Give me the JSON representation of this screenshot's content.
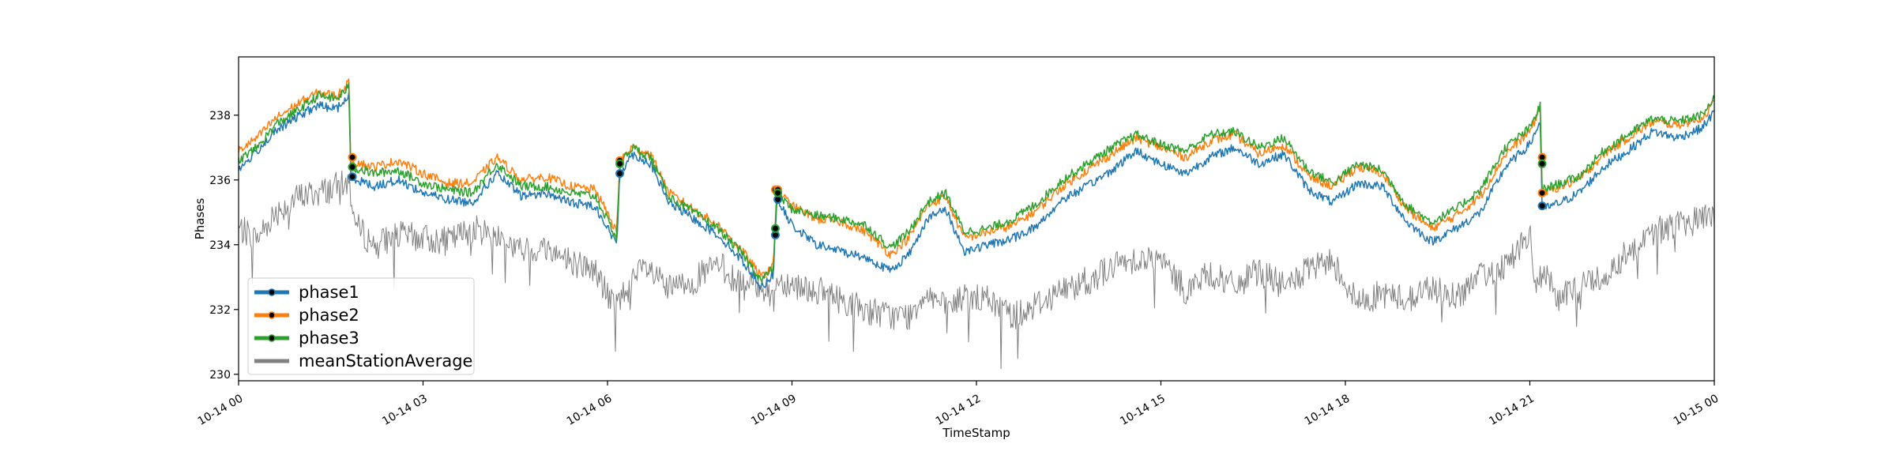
{
  "chart_data": {
    "type": "line",
    "title": "",
    "xlabel": "TimeStamp",
    "ylabel": "Phases",
    "x_range_hours": [
      0,
      24
    ],
    "ylim": [
      229.8,
      239.8
    ],
    "y_ticks": [
      230,
      232,
      234,
      236,
      238
    ],
    "x_ticks": [
      {
        "hour": 0,
        "label": "10-14 00"
      },
      {
        "hour": 3,
        "label": "10-14 03"
      },
      {
        "hour": 6,
        "label": "10-14 06"
      },
      {
        "hour": 9,
        "label": "10-14 09"
      },
      {
        "hour": 12,
        "label": "10-14 12"
      },
      {
        "hour": 15,
        "label": "10-14 15"
      },
      {
        "hour": 18,
        "label": "10-14 18"
      },
      {
        "hour": 21,
        "label": "10-14 21"
      },
      {
        "hour": 24,
        "label": "10-15 00"
      }
    ],
    "grid": false,
    "legend_position": "lower-left",
    "series": [
      {
        "name": "phase1",
        "color": "#1f77b4",
        "x": [
          0,
          0.3,
          0.6,
          1.0,
          1.3,
          1.6,
          1.8,
          1.82,
          2.2,
          2.6,
          3.0,
          3.4,
          3.8,
          4.2,
          4.6,
          5.0,
          5.4,
          5.8,
          6.15,
          6.2,
          6.4,
          6.7,
          7.0,
          7.4,
          7.8,
          8.2,
          8.5,
          8.7,
          8.75,
          9.0,
          9.4,
          9.8,
          10.2,
          10.6,
          10.9,
          11.2,
          11.5,
          11.8,
          12.2,
          12.6,
          13.0,
          13.4,
          13.8,
          14.2,
          14.6,
          15.0,
          15.4,
          15.8,
          16.2,
          16.6,
          17.0,
          17.4,
          17.8,
          18.2,
          18.6,
          19.0,
          19.4,
          19.8,
          20.2,
          20.6,
          21.0,
          21.17,
          21.2,
          21.5,
          21.8,
          22.2,
          22.6,
          23.0,
          23.4,
          23.8,
          24.0
        ],
        "y": [
          236.3,
          236.9,
          237.5,
          238.0,
          238.3,
          238.2,
          238.6,
          236.1,
          235.8,
          236.0,
          235.6,
          235.4,
          235.3,
          236.2,
          235.5,
          235.6,
          235.3,
          235.2,
          234.0,
          236.2,
          236.8,
          236.5,
          235.3,
          234.8,
          234.3,
          233.5,
          232.7,
          233.1,
          235.4,
          234.6,
          234.0,
          233.8,
          233.6,
          233.2,
          233.7,
          234.8,
          235.1,
          233.8,
          234.0,
          234.2,
          234.6,
          235.4,
          235.8,
          236.3,
          236.9,
          236.5,
          236.2,
          236.7,
          237.0,
          236.5,
          236.8,
          235.7,
          235.3,
          235.9,
          235.8,
          234.7,
          234.1,
          234.5,
          235.0,
          236.4,
          237.1,
          237.8,
          235.1,
          235.3,
          235.6,
          236.4,
          236.9,
          237.5,
          237.3,
          237.6,
          238.1
        ]
      },
      {
        "name": "phase2",
        "color": "#ff7f0e",
        "x": [
          0,
          0.3,
          0.6,
          1.0,
          1.3,
          1.6,
          1.8,
          1.82,
          2.2,
          2.6,
          3.0,
          3.4,
          3.8,
          4.2,
          4.6,
          5.0,
          5.4,
          5.8,
          6.15,
          6.2,
          6.4,
          6.7,
          7.0,
          7.4,
          7.8,
          8.2,
          8.5,
          8.7,
          8.75,
          9.0,
          9.4,
          9.8,
          10.2,
          10.6,
          10.9,
          11.2,
          11.5,
          11.8,
          12.2,
          12.6,
          13.0,
          13.4,
          13.8,
          14.2,
          14.6,
          15.0,
          15.4,
          15.8,
          16.2,
          16.6,
          17.0,
          17.4,
          17.8,
          18.2,
          18.6,
          19.0,
          19.4,
          19.8,
          20.2,
          20.6,
          21.0,
          21.17,
          21.2,
          21.5,
          21.8,
          22.2,
          22.6,
          23.0,
          23.4,
          23.8,
          24.0
        ],
        "y": [
          236.9,
          237.3,
          237.9,
          238.4,
          238.7,
          238.6,
          239.0,
          236.6,
          236.4,
          236.6,
          236.2,
          235.9,
          235.9,
          236.7,
          236.0,
          236.1,
          235.8,
          235.7,
          234.4,
          236.6,
          237.0,
          236.8,
          235.6,
          235.1,
          234.6,
          233.8,
          233.0,
          233.4,
          235.7,
          235.2,
          234.8,
          234.7,
          234.4,
          233.7,
          234.2,
          235.2,
          235.5,
          234.2,
          234.4,
          234.6,
          235.1,
          235.8,
          236.3,
          236.8,
          237.3,
          237.0,
          236.7,
          237.2,
          237.4,
          236.8,
          237.1,
          236.1,
          235.8,
          236.4,
          236.2,
          235.1,
          234.5,
          234.9,
          235.5,
          236.8,
          237.5,
          238.2,
          235.6,
          235.8,
          236.0,
          236.8,
          237.3,
          237.8,
          237.7,
          237.9,
          238.4
        ]
      },
      {
        "name": "phase3",
        "color": "#2ca02c",
        "x": [
          0,
          0.3,
          0.6,
          1.0,
          1.3,
          1.6,
          1.8,
          1.82,
          2.2,
          2.6,
          3.0,
          3.4,
          3.8,
          4.2,
          4.6,
          5.0,
          5.4,
          5.8,
          6.15,
          6.2,
          6.4,
          6.7,
          7.0,
          7.4,
          7.8,
          8.2,
          8.5,
          8.7,
          8.75,
          9.0,
          9.4,
          9.8,
          10.2,
          10.6,
          10.9,
          11.2,
          11.5,
          11.8,
          12.2,
          12.6,
          13.0,
          13.4,
          13.8,
          14.2,
          14.6,
          15.0,
          15.4,
          15.8,
          16.2,
          16.6,
          17.0,
          17.4,
          17.8,
          18.2,
          18.6,
          19.0,
          19.4,
          19.8,
          20.2,
          20.6,
          21.0,
          21.17,
          21.2,
          21.5,
          21.8,
          22.2,
          22.6,
          23.0,
          23.4,
          23.8,
          24.0
        ],
        "y": [
          236.6,
          237.0,
          237.7,
          238.2,
          238.6,
          238.5,
          238.9,
          236.4,
          236.2,
          236.3,
          235.9,
          235.7,
          235.6,
          236.5,
          235.8,
          235.8,
          235.6,
          235.5,
          234.2,
          236.5,
          237.0,
          236.7,
          235.5,
          235.0,
          234.5,
          233.7,
          232.9,
          233.3,
          235.6,
          235.1,
          234.9,
          234.8,
          234.6,
          233.9,
          234.4,
          235.3,
          235.6,
          234.4,
          234.5,
          234.8,
          235.3,
          236.0,
          236.5,
          237.0,
          237.4,
          237.1,
          236.9,
          237.4,
          237.5,
          237.0,
          237.3,
          236.3,
          235.9,
          236.5,
          236.3,
          235.2,
          234.7,
          235.1,
          235.7,
          237.0,
          237.6,
          238.3,
          235.7,
          235.9,
          236.1,
          236.9,
          237.4,
          237.9,
          237.8,
          238.0,
          238.5
        ]
      },
      {
        "name": "meanStationAverage",
        "color": "#808080",
        "x": [
          0,
          0.3,
          0.6,
          1.0,
          1.3,
          1.6,
          1.8,
          1.9,
          2.2,
          2.6,
          3.0,
          3.4,
          3.8,
          4.2,
          4.6,
          5.0,
          5.4,
          5.8,
          6.1,
          6.3,
          6.6,
          7.0,
          7.4,
          7.8,
          8.2,
          8.5,
          8.7,
          8.75,
          9.0,
          9.4,
          9.8,
          10.2,
          10.6,
          10.9,
          11.2,
          11.5,
          11.8,
          12.2,
          12.6,
          13.0,
          13.4,
          13.8,
          14.2,
          14.6,
          15.0,
          15.4,
          15.8,
          16.2,
          16.6,
          17.0,
          17.4,
          17.8,
          18.2,
          18.6,
          19.0,
          19.4,
          19.8,
          20.2,
          20.6,
          21.0,
          21.1,
          21.2,
          21.5,
          21.8,
          22.2,
          22.6,
          23.0,
          23.4,
          23.8,
          24.0
        ],
        "y": [
          234.5,
          234.2,
          235.0,
          235.5,
          235.6,
          235.8,
          235.9,
          234.6,
          234.0,
          234.3,
          234.2,
          234.1,
          234.5,
          234.3,
          233.8,
          233.9,
          233.5,
          233.2,
          232.1,
          232.6,
          233.3,
          232.6,
          232.9,
          233.4,
          232.7,
          232.8,
          232.3,
          232.9,
          232.8,
          232.6,
          232.3,
          232.0,
          231.8,
          231.8,
          232.6,
          232.0,
          232.4,
          232.3,
          231.8,
          232.2,
          232.6,
          232.9,
          233.3,
          233.6,
          233.5,
          232.6,
          233.1,
          232.7,
          233.2,
          232.7,
          233.2,
          233.5,
          232.2,
          232.5,
          232.3,
          232.7,
          232.4,
          233.0,
          233.4,
          234.3,
          232.5,
          233.2,
          232.3,
          232.8,
          233.0,
          233.8,
          234.4,
          234.6,
          234.8,
          235.0
        ]
      }
    ],
    "markers": [
      {
        "series": "phase1",
        "x": 1.85,
        "y": 236.1
      },
      {
        "series": "phase2",
        "x": 1.85,
        "y": 236.7
      },
      {
        "series": "phase3",
        "x": 1.85,
        "y": 236.4
      },
      {
        "series": "phase1",
        "x": 6.2,
        "y": 236.2
      },
      {
        "series": "phase2",
        "x": 6.2,
        "y": 236.6
      },
      {
        "series": "phase3",
        "x": 6.2,
        "y": 236.5
      },
      {
        "series": "phase1",
        "x": 8.73,
        "y": 234.3
      },
      {
        "series": "phase2",
        "x": 8.73,
        "y": 235.7
      },
      {
        "series": "phase3",
        "x": 8.73,
        "y": 234.5
      },
      {
        "series": "phase1",
        "x": 8.77,
        "y": 235.4
      },
      {
        "series": "phase2",
        "x": 8.77,
        "y": 235.7
      },
      {
        "series": "phase3",
        "x": 8.77,
        "y": 235.6
      },
      {
        "series": "phase1",
        "x": 21.2,
        "y": 235.2
      },
      {
        "series": "phase2",
        "x": 21.2,
        "y": 236.7
      },
      {
        "series": "phase3",
        "x": 21.2,
        "y": 236.5
      },
      {
        "series": "phase2",
        "x": 21.2,
        "y": 235.6
      }
    ]
  }
}
